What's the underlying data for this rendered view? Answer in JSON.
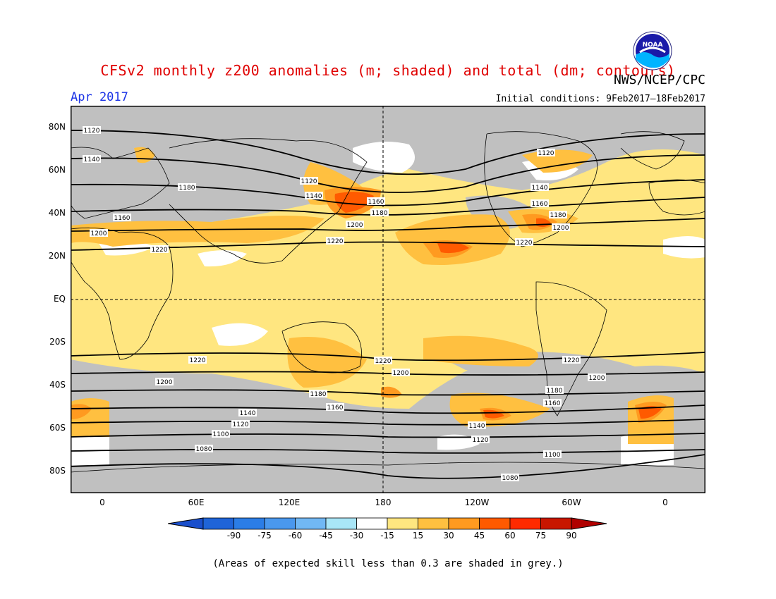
{
  "header": {
    "title": "CFSv2 monthly z200 anomalies (m; shaded) and total (dm; contours)",
    "month": "Apr 2017",
    "agency": "NWS/NCEP/CPC",
    "initial_conditions": "Initial conditions: 9Feb2017–18Feb2017",
    "logo_text": "NOAA"
  },
  "map": {
    "lat_labels": [
      "80N",
      "60N",
      "40N",
      "20N",
      "EQ",
      "20S",
      "40S",
      "60S",
      "80S"
    ],
    "lon_labels": [
      "0",
      "60E",
      "120E",
      "180",
      "120W",
      "60W",
      "0"
    ],
    "contour_labels": [
      "1080",
      "1100",
      "1120",
      "1140",
      "1160",
      "1180",
      "1200",
      "1220"
    ],
    "colors": {
      "grey_low_skill": "#c0c0c0",
      "light_yellow": "#ffe680",
      "yellow_orange": "#ffc040",
      "orange": "#ff9a20",
      "dark_orange": "#ff5a00",
      "white_neutral": "#ffffff"
    }
  },
  "colorbar": {
    "labels": [
      "-90",
      "-75",
      "-60",
      "-45",
      "-30",
      "-15",
      "15",
      "30",
      "45",
      "60",
      "75",
      "90"
    ],
    "colors": [
      "#1f64d8",
      "#2b7de6",
      "#4a98ee",
      "#71b8f4",
      "#a9e6f7",
      "#ffffff",
      "#ffe680",
      "#ffc040",
      "#ff9a20",
      "#ff5a00",
      "#ff2a00",
      "#c81600"
    ],
    "low_end_color": "#1a4fcc",
    "high_end_color": "#b00000"
  },
  "footnote": "(Areas of expected skill less than 0.3 are shaded in grey.)"
}
